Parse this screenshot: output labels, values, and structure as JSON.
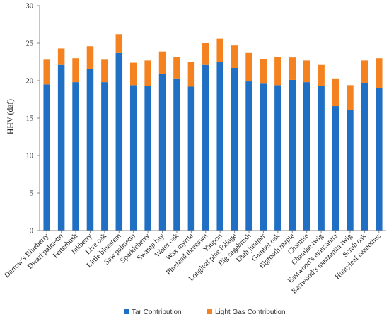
{
  "chart_data": {
    "type": "bar",
    "stacked": true,
    "title": "",
    "xlabel": "",
    "ylabel": "HHV (daf)",
    "ylim": [
      0,
      30
    ],
    "yticks": [
      0,
      5,
      10,
      15,
      20,
      25,
      30
    ],
    "grid": false,
    "legend_position": "bottom-center",
    "categories": [
      "Darrow’s Blueberry",
      "Dwarf palmetto",
      "Fetterbush",
      "Inkberry",
      "Live oak",
      "Little bluestem",
      "Saw palmetto",
      "Sparkleberry",
      "Swamp bay",
      "Water oak",
      "Wax myrtle",
      "Pineland threeawn",
      "Yaupon",
      "Longleaf pine foliage",
      "Big sagebrush",
      "Utah juniper",
      "Gambel oak",
      "Bigtooth maple",
      "Chamise",
      "Chamise twig",
      "Eastwood’s manzanita",
      "Eastwood’s manzanita twig",
      "Scrub oak",
      "Hoaryleaf ceanothus"
    ],
    "series": [
      {
        "name": "Tar Contribution",
        "color": "#1f6fc4",
        "values": [
          19.5,
          22.1,
          19.8,
          21.6,
          19.8,
          23.7,
          19.4,
          19.3,
          20.9,
          20.3,
          19.2,
          22.1,
          22.5,
          21.7,
          19.9,
          19.6,
          19.4,
          20.1,
          19.8,
          19.3,
          16.6,
          16.1,
          19.7,
          19.0
        ]
      },
      {
        "name": "Light Gas Contribution",
        "color": "#f58220",
        "values": [
          3.3,
          2.2,
          3.2,
          3.0,
          3.0,
          2.5,
          3.0,
          3.4,
          3.0,
          2.9,
          3.3,
          2.9,
          3.1,
          3.0,
          3.8,
          3.3,
          3.8,
          3.0,
          2.9,
          2.8,
          3.7,
          3.3,
          3.0,
          4.0
        ]
      }
    ]
  }
}
